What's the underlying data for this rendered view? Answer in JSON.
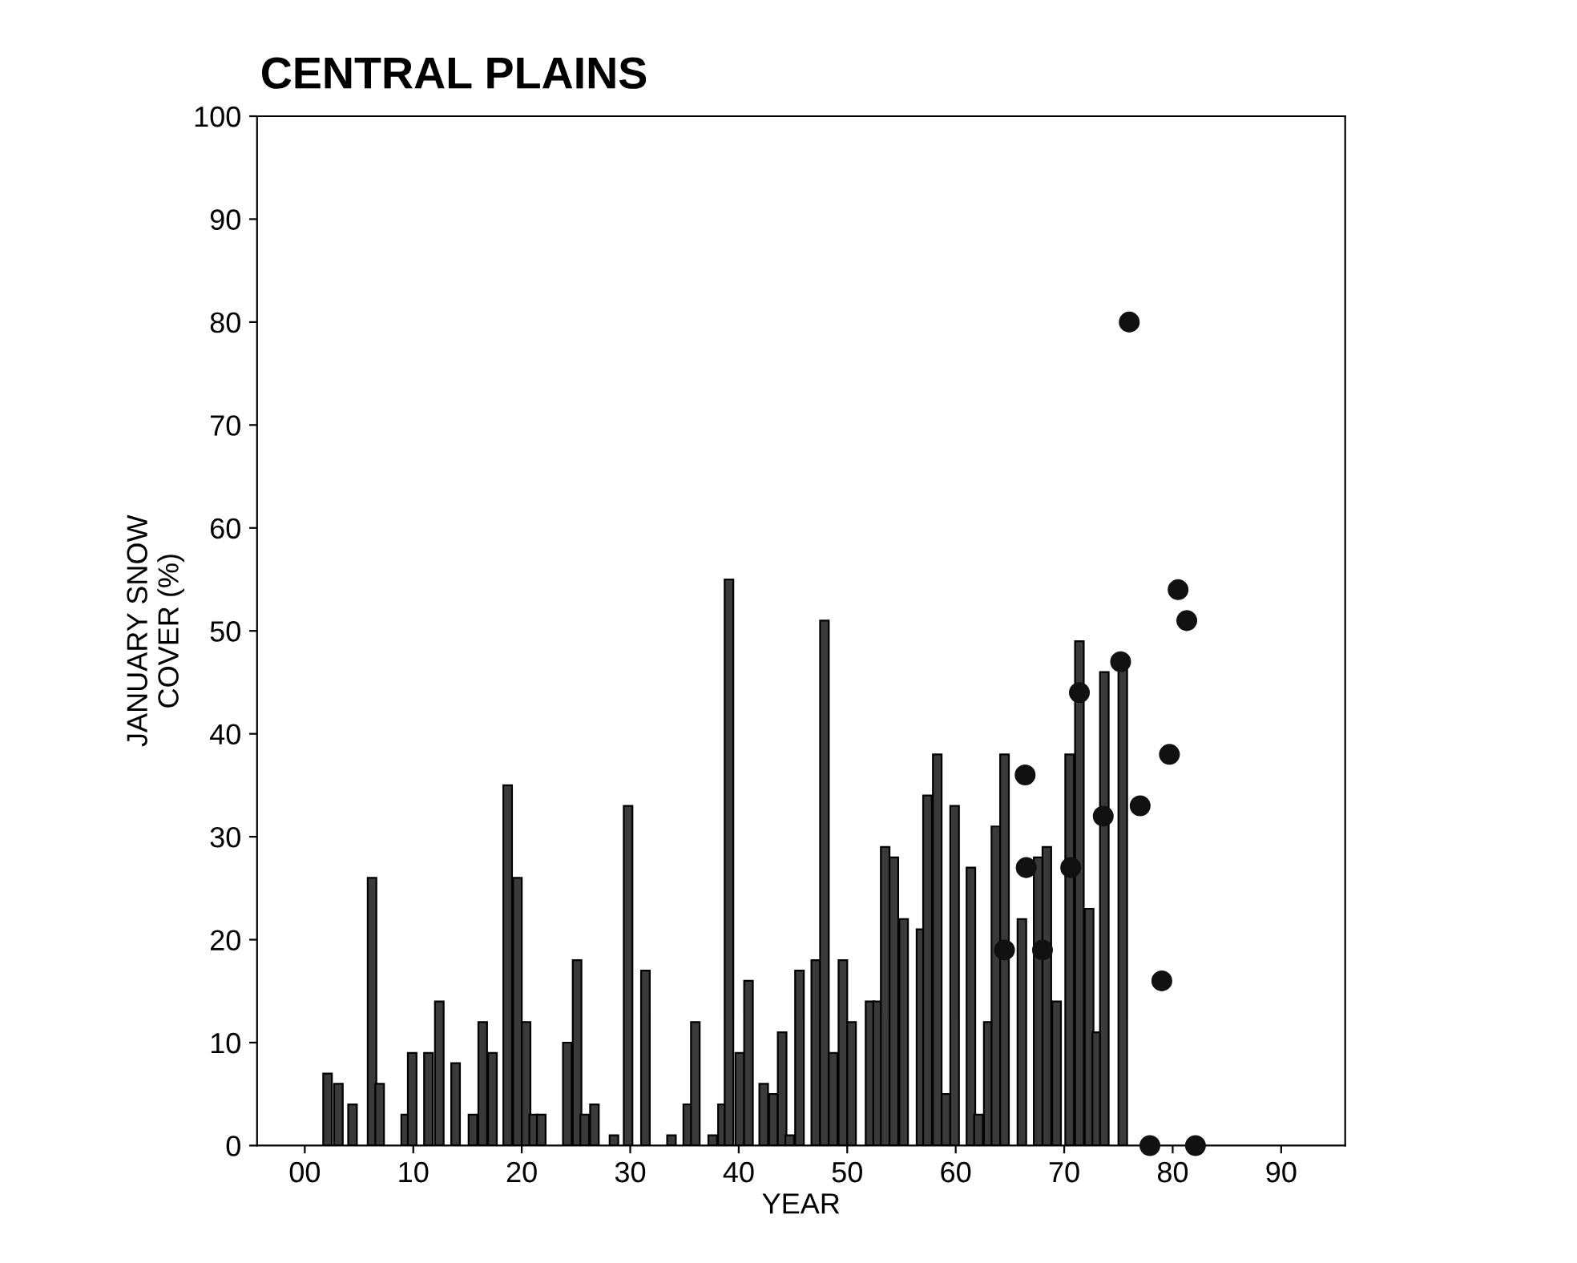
{
  "chart_data": {
    "type": "bar",
    "title": "CENTRAL PLAINS",
    "xlabel": "YEAR",
    "ylabel": "JANUARY SNOW\nCOVER (%)",
    "xlim": [
      -4.4,
      95.9
    ],
    "ylim": [
      0,
      100
    ],
    "xticks": [
      {
        "value": 0,
        "label": "00"
      },
      10,
      20,
      30,
      40,
      50,
      60,
      70,
      80,
      90
    ],
    "yticks": [
      0,
      10,
      20,
      30,
      40,
      50,
      60,
      70,
      80,
      90,
      100
    ],
    "grid": false,
    "series": [
      {
        "color": "#3a3a3a",
        "x": [
          2.1,
          3.1,
          4.4,
          6.2,
          6.9,
          9.3,
          9.9,
          11.4,
          12.4,
          13.9,
          15.5,
          16.4,
          17.3,
          18.7,
          19.6,
          20.4,
          21.1,
          21.8,
          24.2,
          25.1,
          25.8,
          26.7,
          28.5,
          29.8,
          31.4,
          33.8,
          35.3,
          36.0,
          37.6,
          38.5,
          39.1,
          40.1,
          40.9,
          42.3,
          43.2,
          44.0,
          44.7,
          45.6,
          47.1,
          47.9,
          48.7,
          49.6,
          50.4,
          52.1,
          52.8,
          53.5,
          54.3,
          55.2,
          56.8,
          57.4,
          58.3,
          59.1,
          59.9,
          61.4,
          62.1,
          63.0,
          63.7,
          64.5,
          66.1,
          67.6,
          68.4,
          69.3,
          70.5,
          71.4,
          72.3,
          73.0,
          73.7,
          75.4
        ],
        "values": [
          7,
          6,
          4,
          26,
          6,
          3,
          9,
          9,
          14,
          8,
          3,
          12,
          9,
          35,
          26,
          12,
          3,
          3,
          10,
          18,
          3,
          4,
          1,
          33,
          17,
          1,
          4,
          12,
          1,
          4,
          55,
          9,
          16,
          6,
          5,
          11,
          1,
          17,
          18,
          51,
          9,
          18,
          12,
          14,
          14,
          29,
          28,
          22,
          21,
          34,
          38,
          5,
          33,
          27,
          3,
          12,
          31,
          38,
          22,
          28,
          29,
          14,
          38,
          49,
          23,
          11,
          46,
          47
        ]
      },
      {
        "type": "scatter",
        "color": "#111111",
        "marker": "circle",
        "x": [
          64.5,
          66.4,
          66.5,
          68.0,
          70.6,
          71.4,
          73.6,
          75.2,
          76.0,
          77.0,
          77.9,
          79.0,
          79.7,
          80.5,
          81.3,
          82.1
        ],
        "values": [
          19,
          36,
          27,
          19,
          27,
          44,
          32,
          47,
          80,
          33,
          0,
          16,
          38,
          54,
          51,
          0
        ]
      }
    ]
  }
}
